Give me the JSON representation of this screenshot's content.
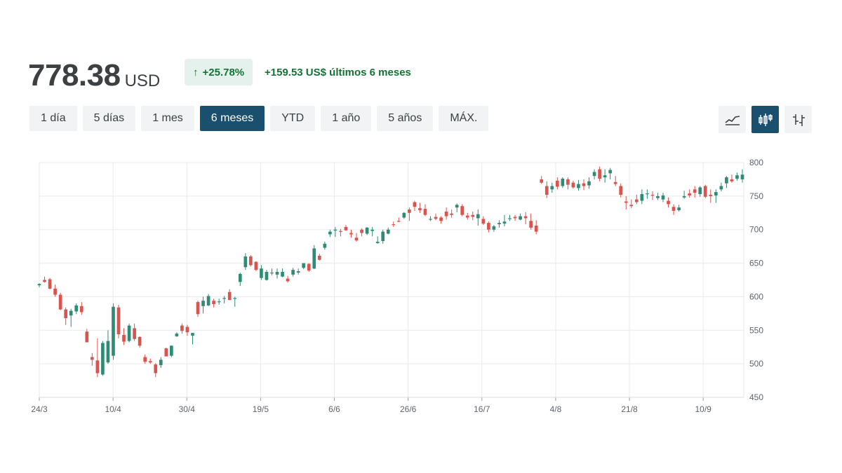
{
  "header": {
    "price": "778.38",
    "currency": "USD",
    "change_arrow": "↑",
    "change_percent": "+25.78%",
    "change_text": "+159.53 US$ últimos 6 meses"
  },
  "tabs": [
    {
      "label": "1 día",
      "active": false
    },
    {
      "label": "5 días",
      "active": false
    },
    {
      "label": "1 mes",
      "active": false
    },
    {
      "label": "6 meses",
      "active": true
    },
    {
      "label": "YTD",
      "active": false
    },
    {
      "label": "1 año",
      "active": false
    },
    {
      "label": "5 años",
      "active": false
    },
    {
      "label": "MÁX.",
      "active": false
    }
  ],
  "tools": [
    {
      "icon": "line-chart-icon",
      "active": false
    },
    {
      "icon": "candlestick-icon",
      "active": true
    },
    {
      "icon": "ohlc-icon",
      "active": false
    }
  ],
  "colors": {
    "up": "#2e8b75",
    "down": "#d9534f",
    "accent": "#1a4f6e",
    "positive_text": "#137333",
    "grid": "#e8eaed"
  },
  "chart_data": {
    "type": "candlestick",
    "xlabels": [
      "24/3",
      "10/4",
      "30/4",
      "19/5",
      "6/6",
      "26/6",
      "16/7",
      "4/8",
      "21/8",
      "10/9"
    ],
    "ylim": [
      450,
      800
    ],
    "yticks": [
      450,
      500,
      550,
      600,
      650,
      700,
      750,
      800
    ],
    "candles": [
      [
        617,
        620,
        614,
        619
      ],
      [
        625,
        630,
        621,
        622
      ],
      [
        626,
        628,
        611,
        612
      ],
      [
        612,
        618,
        600,
        603
      ],
      [
        603,
        606,
        580,
        581
      ],
      [
        581,
        584,
        558,
        568
      ],
      [
        572,
        582,
        555,
        579
      ],
      [
        578,
        590,
        574,
        587
      ],
      [
        586,
        592,
        573,
        577
      ],
      [
        548,
        552,
        532,
        532
      ],
      [
        510,
        516,
        497,
        506
      ],
      [
        505,
        538,
        480,
        486
      ],
      [
        484,
        534,
        482,
        531
      ],
      [
        502,
        550,
        500,
        534
      ],
      [
        512,
        590,
        506,
        585
      ],
      [
        584,
        588,
        538,
        544
      ],
      [
        543,
        553,
        528,
        533
      ],
      [
        534,
        560,
        532,
        557
      ],
      [
        553,
        560,
        534,
        537
      ],
      [
        540,
        541,
        524,
        527
      ],
      [
        510,
        514,
        500,
        503
      ],
      [
        504,
        508,
        500,
        502
      ],
      [
        499,
        501,
        480,
        486
      ],
      [
        498,
        510,
        494,
        506
      ],
      [
        523,
        524,
        511,
        511
      ],
      [
        512,
        527,
        510,
        527
      ],
      [
        541,
        547,
        540,
        545
      ],
      [
        557,
        560,
        545,
        549
      ],
      [
        555,
        558,
        542,
        547
      ],
      [
        542,
        545,
        529,
        546
      ],
      [
        592,
        594,
        570,
        574
      ],
      [
        586,
        600,
        575,
        594
      ],
      [
        587,
        604,
        586,
        601
      ],
      [
        594,
        597,
        584,
        589
      ],
      [
        592,
        597,
        588,
        593
      ],
      [
        598,
        601,
        590,
        598
      ],
      [
        607,
        611,
        595,
        595
      ],
      [
        598,
        600,
        585,
        598
      ],
      [
        622,
        636,
        616,
        634
      ],
      [
        644,
        665,
        640,
        660
      ],
      [
        660,
        662,
        645,
        647
      ],
      [
        652,
        653,
        638,
        640
      ],
      [
        628,
        647,
        625,
        642
      ],
      [
        625,
        640,
        624,
        637
      ],
      [
        635,
        642,
        632,
        636
      ],
      [
        633,
        642,
        627,
        637
      ],
      [
        630,
        642,
        629,
        637
      ],
      [
        627,
        631,
        621,
        623
      ],
      [
        633,
        643,
        630,
        640
      ],
      [
        636,
        642,
        633,
        638
      ],
      [
        643,
        650,
        641,
        650
      ],
      [
        649,
        650,
        637,
        639
      ],
      [
        642,
        677,
        641,
        672
      ],
      [
        661,
        664,
        654,
        655
      ],
      [
        673,
        682,
        670,
        679
      ],
      [
        693,
        700,
        689,
        697
      ],
      [
        699,
        704,
        689,
        700
      ],
      [
        698,
        701,
        690,
        697
      ],
      [
        704,
        707,
        698,
        699
      ],
      [
        695,
        700,
        688,
        693
      ],
      [
        688,
        695,
        682,
        684
      ],
      [
        700,
        702,
        690,
        695
      ],
      [
        694,
        704,
        692,
        703
      ],
      [
        698,
        704,
        690,
        700
      ],
      [
        680,
        690,
        679,
        682
      ],
      [
        683,
        700,
        679,
        697
      ],
      [
        694,
        703,
        693,
        700
      ],
      [
        708,
        712,
        704,
        707
      ],
      [
        713,
        718,
        711,
        712
      ],
      [
        718,
        726,
        716,
        725
      ],
      [
        730,
        733,
        713,
        725
      ],
      [
        741,
        743,
        728,
        734
      ],
      [
        732,
        740,
        725,
        729
      ],
      [
        731,
        738,
        720,
        722
      ],
      [
        716,
        720,
        713,
        716
      ],
      [
        719,
        724,
        714,
        716
      ],
      [
        718,
        720,
        709,
        713
      ],
      [
        727,
        733,
        715,
        720
      ],
      [
        724,
        730,
        718,
        722
      ],
      [
        733,
        739,
        726,
        737
      ],
      [
        735,
        738,
        720,
        722
      ],
      [
        721,
        725,
        715,
        718
      ],
      [
        722,
        727,
        714,
        719
      ],
      [
        717,
        730,
        706,
        723
      ],
      [
        716,
        720,
        707,
        709
      ],
      [
        710,
        712,
        696,
        700
      ],
      [
        700,
        707,
        697,
        705
      ],
      [
        708,
        714,
        703,
        710
      ],
      [
        709,
        722,
        705,
        712
      ],
      [
        716,
        722,
        713,
        717
      ],
      [
        719,
        722,
        713,
        717
      ],
      [
        715,
        724,
        714,
        720
      ],
      [
        720,
        726,
        708,
        717
      ],
      [
        713,
        724,
        700,
        703
      ],
      [
        706,
        714,
        693,
        697
      ],
      [
        775,
        780,
        768,
        770
      ],
      [
        765,
        772,
        747,
        752
      ],
      [
        760,
        770,
        755,
        765
      ],
      [
        773,
        778,
        760,
        764
      ],
      [
        765,
        778,
        762,
        776
      ],
      [
        775,
        778,
        760,
        767
      ],
      [
        770,
        773,
        761,
        763
      ],
      [
        762,
        774,
        758,
        768
      ],
      [
        769,
        775,
        759,
        765
      ],
      [
        766,
        778,
        761,
        772
      ],
      [
        780,
        790,
        775,
        786
      ],
      [
        790,
        794,
        772,
        776
      ],
      [
        778,
        790,
        770,
        781
      ],
      [
        784,
        792,
        775,
        789
      ],
      [
        771,
        780,
        765,
        768
      ],
      [
        765,
        769,
        748,
        752
      ],
      [
        742,
        750,
        730,
        740
      ],
      [
        737,
        745,
        732,
        735
      ],
      [
        745,
        752,
        738,
        741
      ],
      [
        743,
        760,
        738,
        753
      ],
      [
        754,
        760,
        746,
        754
      ],
      [
        752,
        757,
        744,
        751
      ],
      [
        747,
        755,
        744,
        750
      ],
      [
        745,
        755,
        741,
        751
      ],
      [
        743,
        748,
        733,
        738
      ],
      [
        734,
        738,
        722,
        728
      ],
      [
        729,
        737,
        727,
        733
      ],
      [
        748,
        758,
        746,
        750
      ],
      [
        754,
        760,
        748,
        751
      ],
      [
        760,
        765,
        748,
        755
      ],
      [
        753,
        765,
        749,
        763
      ],
      [
        765,
        767,
        747,
        749
      ],
      [
        752,
        760,
        740,
        750
      ],
      [
        751,
        760,
        740,
        756
      ],
      [
        760,
        770,
        757,
        765
      ],
      [
        769,
        780,
        762,
        778
      ],
      [
        775,
        782,
        770,
        772
      ],
      [
        776,
        785,
        773,
        781
      ],
      [
        775,
        790,
        770,
        782
      ]
    ]
  }
}
